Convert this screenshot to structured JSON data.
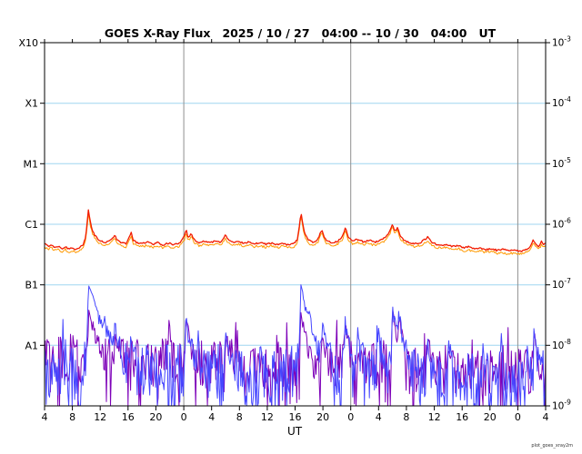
{
  "chart_data": {
    "type": "line",
    "title": "GOES X-Ray Flux   2025 / 10 / 27   04:00 -- 10 / 30   04:00   UT",
    "xlabel": "UT",
    "caption": "plot_goes_xray2m",
    "x_hours_span": 72,
    "x_tick_interval_hours": 4,
    "x_tick_labels": [
      "4",
      "8",
      "12",
      "16",
      "20",
      "0",
      "4",
      "8",
      "12",
      "16",
      "20",
      "0",
      "4",
      "8",
      "12",
      "16",
      "20",
      "0",
      "4"
    ],
    "y_log_range": [
      -9,
      -3
    ],
    "y_left_labels": [
      {
        "label": "X10",
        "log": -3
      },
      {
        "label": "X1",
        "log": -4
      },
      {
        "label": "M1",
        "log": -5
      },
      {
        "label": "C1",
        "log": -6
      },
      {
        "label": "B1",
        "log": -7
      },
      {
        "label": "A1",
        "log": -8
      }
    ],
    "y_right_exponents": [
      "-3",
      "-4",
      "-5",
      "-6",
      "-7",
      "-8",
      "-9"
    ],
    "grid": {
      "h_lines_log": [
        -4,
        -5,
        -6,
        -7,
        -8
      ],
      "v_lines_hours": [
        20,
        44,
        68
      ],
      "h_color": "#9fd6f0",
      "v_color": "#909090"
    },
    "series": [
      {
        "name": "short-channel-secondary",
        "kind": "noisy",
        "color": "#7d00b8",
        "width": 1,
        "seed": 1933,
        "noise_amp": 0.4,
        "dip_prob": 0.07,
        "dip_extra": 1.1,
        "boost_prob": 0.1,
        "boost_factor": 1.8,
        "envelope": [
          [
            0,
            -8.3
          ],
          [
            3,
            -8.2
          ],
          [
            6,
            -8.25
          ],
          [
            9,
            -8.3
          ],
          [
            12,
            -8.25
          ],
          [
            15,
            -8.35
          ],
          [
            18,
            -8.25
          ],
          [
            21,
            -8.3
          ],
          [
            24,
            -8.35
          ],
          [
            27,
            -8.3
          ],
          [
            30,
            -8.4
          ],
          [
            33,
            -8.35
          ],
          [
            36,
            -8.3
          ],
          [
            39,
            -8.35
          ],
          [
            42,
            -8.3
          ],
          [
            45,
            -8.35
          ],
          [
            48,
            -8.3
          ],
          [
            51,
            -8.35
          ],
          [
            54,
            -8.4
          ],
          [
            57,
            -8.45
          ],
          [
            60,
            -8.4
          ],
          [
            63,
            -8.45
          ],
          [
            66,
            -8.4
          ],
          [
            69,
            -8.45
          ],
          [
            72,
            -8.35
          ]
        ],
        "spikes": [
          [
            6.3,
            -7.5,
            0.8
          ],
          [
            10.1,
            -7.9,
            0.4
          ],
          [
            20.3,
            -7.65,
            0.5
          ],
          [
            26,
            -8.0,
            0.4
          ],
          [
            36.8,
            -7.5,
            0.6
          ],
          [
            39.9,
            -7.85,
            0.4
          ],
          [
            43.2,
            -7.75,
            0.4
          ],
          [
            50.0,
            -7.5,
            0.5
          ],
          [
            50.9,
            -7.6,
            0.4
          ],
          [
            55,
            -8.0,
            0.4
          ],
          [
            70.3,
            -7.95,
            0.4
          ]
        ]
      },
      {
        "name": "short-channel-primary",
        "kind": "noisy",
        "color": "#4646ff",
        "width": 1,
        "seed": 2741,
        "noise_amp": 0.5,
        "dip_prob": 0.12,
        "dip_extra": 1.3,
        "boost_prob": 0.1,
        "boost_factor": 1.8,
        "envelope": [
          [
            0,
            -8.5
          ],
          [
            3,
            -8.4
          ],
          [
            6,
            -8.45
          ],
          [
            9,
            -8.5
          ],
          [
            12,
            -8.45
          ],
          [
            15,
            -8.55
          ],
          [
            18,
            -8.45
          ],
          [
            21,
            -8.5
          ],
          [
            24,
            -8.55
          ],
          [
            27,
            -8.5
          ],
          [
            30,
            -8.6
          ],
          [
            33,
            -8.55
          ],
          [
            36,
            -8.45
          ],
          [
            39,
            -8.5
          ],
          [
            42,
            -8.45
          ],
          [
            45,
            -8.5
          ],
          [
            48,
            -8.45
          ],
          [
            51,
            -8.5
          ],
          [
            54,
            -8.55
          ],
          [
            57,
            -8.6
          ],
          [
            60,
            -8.6
          ],
          [
            63,
            -8.65
          ],
          [
            66,
            -8.6
          ],
          [
            69,
            -8.65
          ],
          [
            72,
            -8.5
          ]
        ],
        "spikes": [
          [
            6.3,
            -7.0,
            1.2
          ],
          [
            8.6,
            -7.9,
            0.5
          ],
          [
            10.1,
            -7.85,
            0.5
          ],
          [
            12.4,
            -7.95,
            0.4
          ],
          [
            14.6,
            -8.0,
            0.4
          ],
          [
            20.3,
            -7.6,
            0.6
          ],
          [
            22.0,
            -7.9,
            0.4
          ],
          [
            26.0,
            -7.95,
            0.5
          ],
          [
            31.0,
            -8.0,
            0.4
          ],
          [
            36.8,
            -7.0,
            0.8
          ],
          [
            38.0,
            -7.9,
            0.4
          ],
          [
            39.9,
            -7.75,
            0.5
          ],
          [
            43.2,
            -7.6,
            0.5
          ],
          [
            45.0,
            -7.9,
            0.4
          ],
          [
            48.0,
            -7.85,
            0.4
          ],
          [
            50.0,
            -7.4,
            0.6
          ],
          [
            50.9,
            -7.55,
            0.5
          ],
          [
            55.0,
            -7.95,
            0.4
          ],
          [
            58.0,
            -8.0,
            0.4
          ],
          [
            63.0,
            -8.0,
            0.4
          ],
          [
            70.3,
            -7.85,
            0.5
          ]
        ]
      },
      {
        "name": "long-channel-secondary",
        "kind": "offset",
        "from": "long-channel-primary",
        "offset": -0.05,
        "jitter": 0.02,
        "seed": 77,
        "color": "#ff9900",
        "width": 1
      },
      {
        "name": "long-channel-primary",
        "kind": "keypoints",
        "color": "#f21b00",
        "width": 1.3,
        "jitter": 0.013,
        "seed": 55,
        "points": [
          [
            0,
            -6.32
          ],
          [
            0.5,
            -6.36
          ],
          [
            1,
            -6.34
          ],
          [
            1.5,
            -6.38
          ],
          [
            2,
            -6.36
          ],
          [
            2.5,
            -6.4
          ],
          [
            3,
            -6.37
          ],
          [
            3.5,
            -6.41
          ],
          [
            4,
            -6.38
          ],
          [
            4.5,
            -6.42
          ],
          [
            5,
            -6.38
          ],
          [
            5.5,
            -6.35
          ],
          [
            5.9,
            -6.22
          ],
          [
            6.1,
            -6.0
          ],
          [
            6.3,
            -5.76
          ],
          [
            6.5,
            -5.92
          ],
          [
            6.8,
            -6.08
          ],
          [
            7.2,
            -6.18
          ],
          [
            7.8,
            -6.26
          ],
          [
            8.5,
            -6.3
          ],
          [
            9.2,
            -6.28
          ],
          [
            9.8,
            -6.22
          ],
          [
            10.1,
            -6.18
          ],
          [
            10.4,
            -6.26
          ],
          [
            11,
            -6.3
          ],
          [
            11.7,
            -6.32
          ],
          [
            12.2,
            -6.2
          ],
          [
            12.45,
            -6.14
          ],
          [
            12.7,
            -6.26
          ],
          [
            13.2,
            -6.3
          ],
          [
            14,
            -6.32
          ],
          [
            14.8,
            -6.29
          ],
          [
            15.5,
            -6.33
          ],
          [
            16.2,
            -6.3
          ],
          [
            17,
            -6.34
          ],
          [
            17.8,
            -6.31
          ],
          [
            18.6,
            -6.34
          ],
          [
            19.4,
            -6.31
          ],
          [
            20.1,
            -6.2
          ],
          [
            20.35,
            -6.08
          ],
          [
            20.6,
            -6.22
          ],
          [
            21.1,
            -6.16
          ],
          [
            21.5,
            -6.26
          ],
          [
            22.2,
            -6.3
          ],
          [
            23,
            -6.28
          ],
          [
            23.8,
            -6.31
          ],
          [
            24.6,
            -6.27
          ],
          [
            25.3,
            -6.3
          ],
          [
            26,
            -6.18
          ],
          [
            26.4,
            -6.26
          ],
          [
            27,
            -6.3
          ],
          [
            27.8,
            -6.28
          ],
          [
            28.6,
            -6.31
          ],
          [
            29.4,
            -6.29
          ],
          [
            30.2,
            -6.32
          ],
          [
            31,
            -6.3
          ],
          [
            31.8,
            -6.33
          ],
          [
            32.6,
            -6.31
          ],
          [
            33.4,
            -6.34
          ],
          [
            34.2,
            -6.31
          ],
          [
            35,
            -6.34
          ],
          [
            35.8,
            -6.32
          ],
          [
            36.3,
            -6.26
          ],
          [
            36.6,
            -6.05
          ],
          [
            36.85,
            -5.79
          ],
          [
            37.1,
            -6.0
          ],
          [
            37.4,
            -6.16
          ],
          [
            37.9,
            -6.26
          ],
          [
            38.6,
            -6.3
          ],
          [
            39.3,
            -6.24
          ],
          [
            39.85,
            -6.09
          ],
          [
            40.15,
            -6.2
          ],
          [
            40.6,
            -6.28
          ],
          [
            41.3,
            -6.31
          ],
          [
            42.1,
            -6.28
          ],
          [
            42.8,
            -6.2
          ],
          [
            43.25,
            -6.06
          ],
          [
            43.6,
            -6.2
          ],
          [
            44.2,
            -6.27
          ],
          [
            45,
            -6.25
          ],
          [
            45.8,
            -6.29
          ],
          [
            46.6,
            -6.26
          ],
          [
            47.4,
            -6.3
          ],
          [
            48.2,
            -6.26
          ],
          [
            49,
            -6.22
          ],
          [
            49.6,
            -6.12
          ],
          [
            50.0,
            -5.99
          ],
          [
            50.3,
            -6.12
          ],
          [
            50.7,
            -6.06
          ],
          [
            51.1,
            -6.18
          ],
          [
            51.6,
            -6.26
          ],
          [
            52.3,
            -6.3
          ],
          [
            53.1,
            -6.32
          ],
          [
            54,
            -6.3
          ],
          [
            54.7,
            -6.25
          ],
          [
            55.1,
            -6.21
          ],
          [
            55.5,
            -6.28
          ],
          [
            56.2,
            -6.33
          ],
          [
            57,
            -6.35
          ],
          [
            57.8,
            -6.33
          ],
          [
            58.6,
            -6.37
          ],
          [
            59.4,
            -6.35
          ],
          [
            60.2,
            -6.39
          ],
          [
            61,
            -6.37
          ],
          [
            61.8,
            -6.41
          ],
          [
            62.6,
            -6.39
          ],
          [
            63.4,
            -6.42
          ],
          [
            64.2,
            -6.4
          ],
          [
            65,
            -6.43
          ],
          [
            65.8,
            -6.41
          ],
          [
            66.6,
            -6.44
          ],
          [
            67.4,
            -6.42
          ],
          [
            68.2,
            -6.45
          ],
          [
            69,
            -6.43
          ],
          [
            69.7,
            -6.38
          ],
          [
            70.2,
            -6.27
          ],
          [
            70.6,
            -6.33
          ],
          [
            71,
            -6.37
          ],
          [
            71.4,
            -6.28
          ],
          [
            71.7,
            -6.33
          ],
          [
            72,
            -6.3
          ]
        ]
      }
    ]
  }
}
